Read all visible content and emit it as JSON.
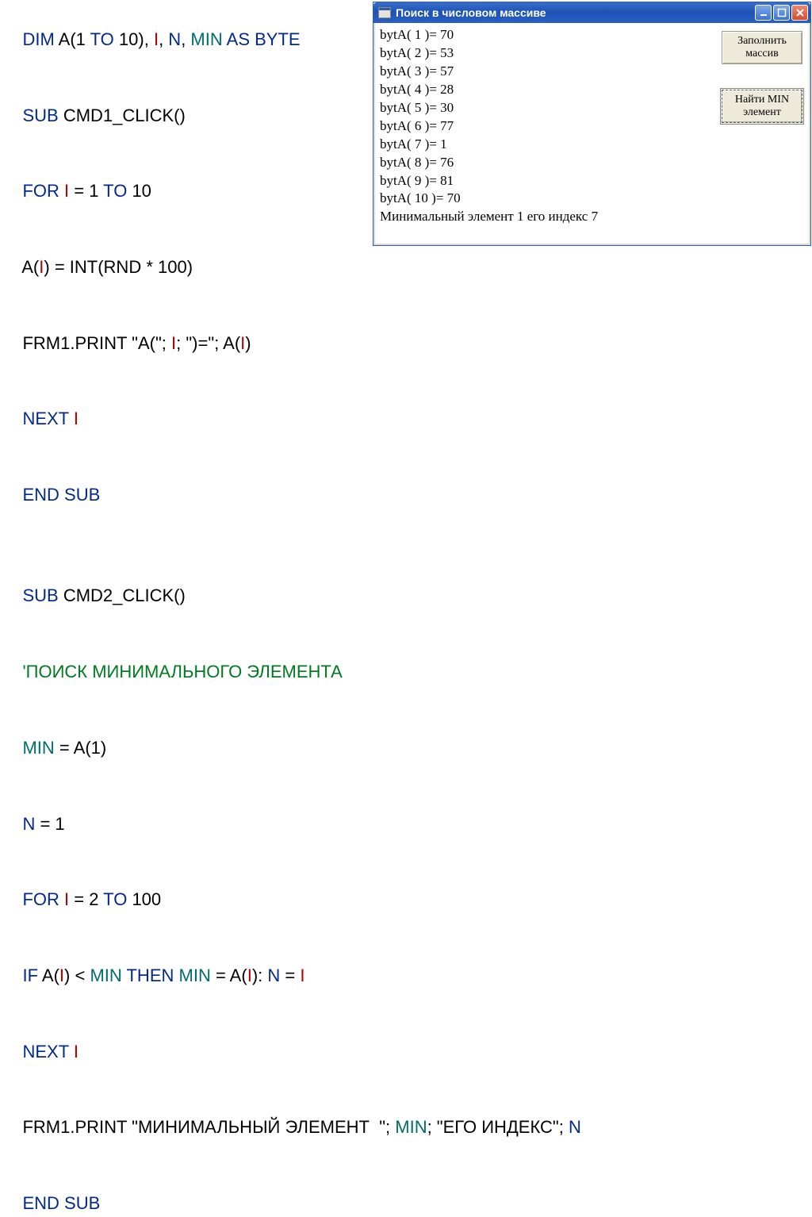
{
  "code": {
    "l1": {
      "a": "DIM",
      "b": " A(1 ",
      "c": "TO",
      "d": " 10), ",
      "e": "I",
      "f": ", ",
      "g": "N",
      "h": ", ",
      "i": "MIN",
      "j": " AS BYTE"
    },
    "l2": {
      "a": "SUB",
      "b": " CMD1_CLICK()"
    },
    "l3": {
      "a": "FOR ",
      "b": "I",
      "c": " = 1 ",
      "d": "TO",
      "e": " 10"
    },
    "l4": {
      "a": "A(",
      "b": "I",
      "c": ") = INT(RND * 100)"
    },
    "l5": {
      "a": "FRM1.PRINT \"A(\"; ",
      "b": "I",
      "c": "; \")=\"; A(",
      "d": "I",
      "e": ")"
    },
    "l6": {
      "a": "NEXT ",
      "b": "I"
    },
    "l7": "END SUB",
    "l8": {
      "a": "SUB",
      "b": " CMD2_CLICK()"
    },
    "l9": "'ПОИСК МИНИМАЛЬНОГО ЭЛЕМЕНТА",
    "l10": {
      "a": "MIN",
      "b": " = A(1)"
    },
    "l11": {
      "a": "N",
      "b": " = 1"
    },
    "l12": {
      "a": "FOR ",
      "b": "I",
      "c": " = 2 ",
      "d": "TO",
      "e": " 100"
    },
    "l13": {
      "a": "IF",
      "b": " A(",
      "c": "I",
      "d": ") < ",
      "e": "MIN",
      "f": " THEN ",
      "g": "MIN",
      "h": " = A(",
      "i": "I",
      "j": "): ",
      "k": "N",
      "l": " = ",
      "m": "I"
    },
    "l14": {
      "a": "NEXT ",
      "b": "I"
    },
    "l15": {
      "a": "FRM1.PRINT \"МИНИМАЛЬНЫЙ ЭЛЕМЕНТ  \"; ",
      "b": "MIN",
      "c": "; \"ЕГО ИНДЕКС\"; ",
      "d": "N"
    },
    "l16": "END SUB"
  },
  "window": {
    "title": "Поиск в числовом массиве",
    "output": [
      "bytA( 1 )= 70",
      "bytA( 2 )= 53",
      "bytA( 3 )= 57",
      "bytA( 4 )= 28",
      "bytA( 5 )= 30",
      "bytA( 6 )= 77",
      "bytA( 7 )= 1",
      "bytA( 8 )= 76",
      "bytA( 9 )= 81",
      "bytA( 10 )= 70",
      "Минимальный элемент   1 его индекс 7"
    ],
    "buttons": {
      "fill": "Заполнить\nмассив",
      "findmin": "Найти MIN\nэлемент"
    }
  }
}
